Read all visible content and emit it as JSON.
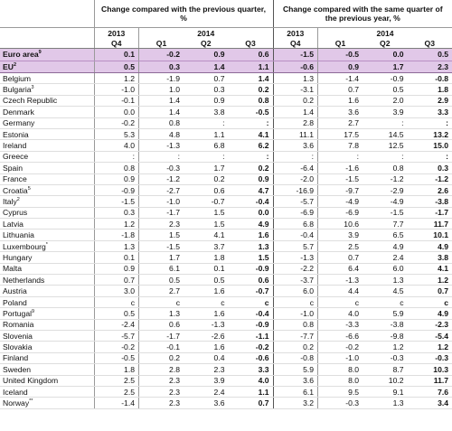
{
  "header": {
    "group_prev_quarter": "Change compared with the previous quarter, %",
    "group_prev_year": "Change compared with the same quarter of the previous year, %",
    "years_left": [
      "2013",
      "2014"
    ],
    "years_right": [
      "2013",
      "2014"
    ],
    "quarters": [
      "Q4",
      "Q1",
      "Q2",
      "Q3",
      "Q4",
      "Q1",
      "Q2",
      "Q3"
    ]
  },
  "rows": [
    {
      "country": "Euro area",
      "sup": "9",
      "values": [
        "0.1",
        "-0.2",
        "0.9",
        "0.6",
        "-1.5",
        "-0.5",
        "0.0",
        "0.5"
      ]
    },
    {
      "country": "EU",
      "sup": "2",
      "values": [
        "0.5",
        "0.3",
        "1.4",
        "1.1",
        "-0.6",
        "0.9",
        "1.7",
        "2.3"
      ]
    },
    {
      "country": "Belgium",
      "sup": "",
      "values": [
        "1.2",
        "-1.9",
        "0.7",
        "1.4",
        "1.3",
        "-1.4",
        "-0.9",
        "-0.8"
      ]
    },
    {
      "country": "Bulgaria",
      "sup": "3",
      "values": [
        "-1.0",
        "1.0",
        "0.3",
        "0.2",
        "-3.1",
        "0.7",
        "0.5",
        "1.8"
      ]
    },
    {
      "country": "Czech Republic",
      "sup": "",
      "values": [
        "-0.1",
        "1.4",
        "0.9",
        "0.8",
        "0.2",
        "1.6",
        "2.0",
        "2.9"
      ]
    },
    {
      "country": "Denmark",
      "sup": "",
      "values": [
        "0.0",
        "1.4",
        "3.8",
        "-0.5",
        "1.4",
        "3.6",
        "3.9",
        "3.3"
      ]
    },
    {
      "country": "Germany",
      "sup": "",
      "values": [
        "-0.2",
        "0.8",
        ":",
        ":",
        "2.8",
        "2.7",
        ":",
        ":"
      ]
    },
    {
      "country": "Estonia",
      "sup": "",
      "values": [
        "5.3",
        "4.8",
        "1.1",
        "4.1",
        "11.1",
        "17.5",
        "14.5",
        "13.2"
      ]
    },
    {
      "country": "Ireland",
      "sup": "",
      "values": [
        "4.0",
        "-1.3",
        "6.8",
        "6.2",
        "3.6",
        "7.8",
        "12.5",
        "15.0"
      ]
    },
    {
      "country": "Greece",
      "sup": "",
      "values": [
        ":",
        ":",
        ":",
        ":",
        ":",
        ":",
        ":",
        ":"
      ]
    },
    {
      "country": "Spain",
      "sup": "",
      "values": [
        "0.8",
        "-0.3",
        "1.7",
        "0.2",
        "-6.4",
        "-1.6",
        "0.8",
        "0.3"
      ]
    },
    {
      "country": "France",
      "sup": "",
      "values": [
        "0.9",
        "-1.2",
        "0.2",
        "0.9",
        "-2.0",
        "-1.5",
        "-1.2",
        "-1.2"
      ]
    },
    {
      "country": "Croatia",
      "sup": "5",
      "values": [
        "-0.9",
        "-2.7",
        "0.6",
        "4.7",
        "-16.9",
        "-9.7",
        "-2.9",
        "2.6"
      ]
    },
    {
      "country": "Italy",
      "sup": "2",
      "values": [
        "-1.5",
        "-1.0",
        "-0.7",
        "-0.4",
        "-5.7",
        "-4.9",
        "-4.9",
        "-3.8"
      ]
    },
    {
      "country": "Cyprus",
      "sup": "",
      "values": [
        "0.3",
        "-1.7",
        "1.5",
        "0.0",
        "-6.9",
        "-6.9",
        "-1.5",
        "-1.7"
      ]
    },
    {
      "country": "Latvia",
      "sup": "",
      "values": [
        "1.2",
        "2.3",
        "1.5",
        "4.9",
        "6.8",
        "10.6",
        "7.7",
        "11.7"
      ]
    },
    {
      "country": "Lithuania",
      "sup": "",
      "values": [
        "-1.8",
        "1.5",
        "4.1",
        "1.6",
        "-0.4",
        "3.9",
        "6.5",
        "10.1"
      ]
    },
    {
      "country": "Luxembourg",
      "sup": "*",
      "values": [
        "1.3",
        "-1.5",
        "3.7",
        "1.3",
        "5.7",
        "2.5",
        "4.9",
        "4.9"
      ]
    },
    {
      "country": "Hungary",
      "sup": "",
      "values": [
        "0.1",
        "1.7",
        "1.8",
        "1.5",
        "-1.3",
        "0.7",
        "2.4",
        "3.8"
      ]
    },
    {
      "country": "Malta",
      "sup": "",
      "values": [
        "0.9",
        "6.1",
        "0.1",
        "-0.9",
        "-2.2",
        "6.4",
        "6.0",
        "4.1"
      ]
    },
    {
      "country": "Netherlands",
      "sup": "",
      "values": [
        "0.7",
        "0.5",
        "0.5",
        "0.6",
        "-3.7",
        "-1.3",
        "1.3",
        "1.2"
      ]
    },
    {
      "country": "Austria",
      "sup": "",
      "values": [
        "3.0",
        "2.7",
        "1.6",
        "-0.7",
        "6.0",
        "4.4",
        "4.5",
        "0.7"
      ]
    },
    {
      "country": "Poland",
      "sup": "",
      "values": [
        "c",
        "c",
        "c",
        "c",
        "c",
        "c",
        "c",
        "c"
      ]
    },
    {
      "country": "Portugal",
      "sup": "9",
      "values": [
        "0.5",
        "1.3",
        "1.6",
        "-0.4",
        "-1.0",
        "4.0",
        "5.9",
        "4.9"
      ]
    },
    {
      "country": "Romania",
      "sup": "",
      "values": [
        "-2.4",
        "0.6",
        "-1.3",
        "-0.9",
        "0.8",
        "-3.3",
        "-3.8",
        "-2.3"
      ]
    },
    {
      "country": "Slovenia",
      "sup": "",
      "values": [
        "-5.7",
        "-1.7",
        "-2.6",
        "-1.1",
        "-7.7",
        "-6.6",
        "-9.8",
        "-5.4"
      ]
    },
    {
      "country": "Slovakia",
      "sup": "",
      "values": [
        "-0.2",
        "-0.1",
        "1.6",
        "-0.2",
        "0.2",
        "-0.2",
        "1.2",
        "1.2"
      ]
    },
    {
      "country": "Finland",
      "sup": "",
      "values": [
        "-0.5",
        "0.2",
        "0.4",
        "-0.6",
        "-0.8",
        "-1.0",
        "-0.3",
        "-0.3"
      ]
    },
    {
      "country": "Sweden",
      "sup": "",
      "values": [
        "1.8",
        "2.8",
        "2.3",
        "3.3",
        "5.9",
        "8.0",
        "8.7",
        "10.3"
      ]
    },
    {
      "country": "United Kingdom",
      "sup": "",
      "values": [
        "2.5",
        "2.3",
        "3.9",
        "4.0",
        "3.6",
        "8.0",
        "10.2",
        "11.7"
      ]
    },
    {
      "country": "Iceland",
      "sup": "",
      "values": [
        "2.5",
        "2.3",
        "2.4",
        "1.1",
        "6.1",
        "9.5",
        "9.1",
        "7.6"
      ]
    },
    {
      "country": "Norway",
      "sup": "**",
      "values": [
        "-1.4",
        "2.3",
        "3.6",
        "0.7",
        "3.2",
        "-0.3",
        "1.3",
        "3.4"
      ]
    }
  ]
}
